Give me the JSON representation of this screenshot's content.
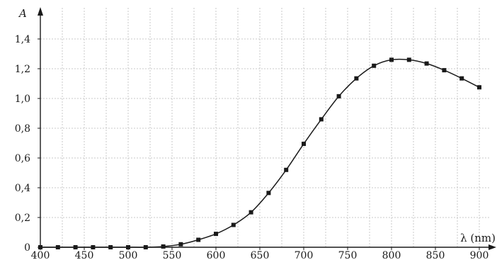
{
  "chart_data": {
    "type": "line",
    "title": "",
    "xlabel": "λ (nm)",
    "ylabel": "A",
    "xlim": [
      400,
      900
    ],
    "ylim": [
      0,
      1.4
    ],
    "grid": true,
    "x_ticks": [
      400,
      450,
      500,
      550,
      600,
      650,
      700,
      750,
      800,
      850,
      900
    ],
    "x_tick_labels": [
      "400",
      "450",
      "500",
      "550",
      "600",
      "650",
      "700",
      "750",
      "800",
      "850",
      "900"
    ],
    "y_ticks": [
      0,
      0.2,
      0.4,
      0.6,
      0.8,
      1.0,
      1.2,
      1.4
    ],
    "y_tick_labels": [
      "0",
      "0,2",
      "0,4",
      "0,6",
      "0,8",
      "1,0",
      "1,2",
      "1,4"
    ],
    "series": [
      {
        "x": [
          400,
          420,
          440,
          460,
          480,
          500,
          520,
          540,
          560,
          580,
          600,
          620,
          640,
          660,
          680,
          700,
          720,
          740,
          760,
          780,
          800,
          820,
          840,
          860,
          880,
          900
        ],
        "y": [
          0,
          0,
          0,
          0,
          0,
          0,
          0,
          0.005,
          0.02,
          0.05,
          0.09,
          0.15,
          0.235,
          0.365,
          0.52,
          0.695,
          0.86,
          1.015,
          1.135,
          1.22,
          1.26,
          1.26,
          1.235,
          1.19,
          1.135,
          1.075
        ]
      }
    ]
  }
}
